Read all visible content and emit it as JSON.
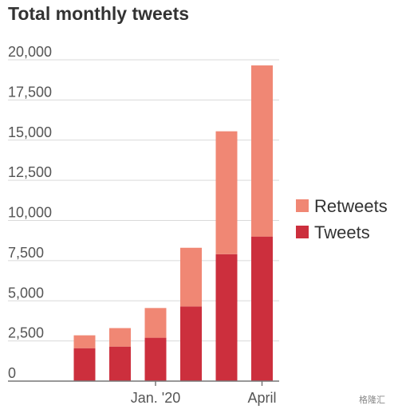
{
  "chart_data": {
    "type": "bar",
    "stacked": true,
    "title": "Total monthly tweets",
    "categories": [
      "",
      "",
      "Jan. '20",
      "",
      "",
      "April"
    ],
    "series": [
      {
        "name": "Tweets",
        "color": "#cc2f3d",
        "values": [
          2050,
          2150,
          2700,
          4650,
          7900,
          9000
        ]
      },
      {
        "name": "Retweets",
        "color": "#f08774",
        "values": [
          800,
          1150,
          1850,
          3650,
          7650,
          10650
        ]
      }
    ],
    "ylim": [
      0,
      20000
    ],
    "yticks": [
      0,
      2500,
      5000,
      7500,
      10000,
      12500,
      15000,
      17500,
      20000
    ],
    "ytick_labels": [
      "0",
      "2,500",
      "5,000",
      "7,500",
      "10,000",
      "12,500",
      "15,000",
      "17,500",
      "20,000"
    ],
    "grid": true,
    "legend": {
      "position": "right",
      "entries": [
        "Retweets",
        "Tweets"
      ]
    },
    "xlabel": "",
    "ylabel": ""
  },
  "watermark": "格隆汇"
}
